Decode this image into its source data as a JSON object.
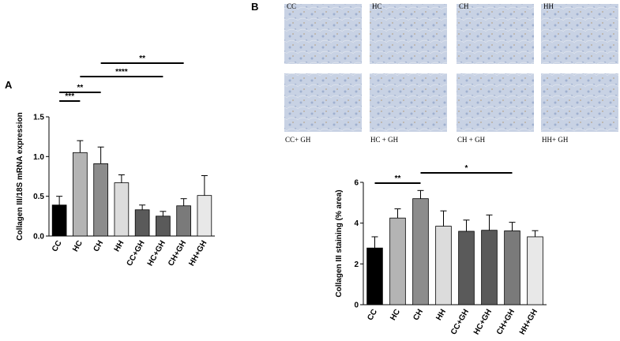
{
  "panel_letters": [
    "A",
    "B"
  ],
  "micrographs": {
    "top_labels": [
      "CC",
      "HC",
      "CH",
      "HH"
    ],
    "bottom_labels": [
      "CC+ GH",
      "HC + GH",
      "CH + GH",
      "HH+ GH"
    ]
  },
  "chart_data": [
    {
      "type": "bar",
      "y_label": "Collagen III/18S mRNA expression",
      "categories": [
        "CC",
        "HC",
        "CH",
        "HH",
        "CC+GH",
        "HC+GH",
        "CH+GH",
        "HH+GH"
      ],
      "values": [
        0.39,
        1.05,
        0.91,
        0.67,
        0.33,
        0.25,
        0.38,
        0.51
      ],
      "errors": [
        0.11,
        0.15,
        0.21,
        0.1,
        0.06,
        0.06,
        0.09,
        0.25
      ],
      "colors": [
        "#000000",
        "#b4b4b4",
        "#8c8c8c",
        "#dcdcdc",
        "#5a5a5a",
        "#5a5a5a",
        "#7a7a7a",
        "#e8e8e8"
      ],
      "ylim": [
        0,
        1.5
      ],
      "yticks": [
        {
          "value": 0,
          "label": "0.0"
        },
        0.5,
        {
          "value": 1,
          "label": "1.0"
        },
        1.5
      ],
      "annotations": [
        {
          "text": "***",
          "from": "CC",
          "to": "HC"
        },
        {
          "text": "**",
          "from": "CC",
          "to": "CH"
        },
        {
          "text": "****",
          "from": "HC",
          "to": "HC+GH"
        },
        {
          "text": "**",
          "from": "CH",
          "to": "CH+GH"
        }
      ]
    },
    {
      "type": "bar",
      "y_label": "Collagen III staining (% area)",
      "categories": [
        "CC",
        "HC",
        "CH",
        "HH",
        "CC+GH",
        "HC+GH",
        "CH+GH",
        "HH+GH"
      ],
      "values": [
        2.78,
        4.25,
        5.2,
        3.85,
        3.6,
        3.65,
        3.62,
        3.33
      ],
      "errors": [
        0.55,
        0.45,
        0.4,
        0.75,
        0.55,
        0.75,
        0.42,
        0.3
      ],
      "colors": [
        "#000000",
        "#b4b4b4",
        "#8c8c8c",
        "#dcdcdc",
        "#5a5a5a",
        "#5a5a5a",
        "#7a7a7a",
        "#e8e8e8"
      ],
      "ylim": [
        0,
        6
      ],
      "yticks": [
        0,
        2,
        4,
        6
      ],
      "annotations": [
        {
          "text": "**",
          "from": "CC",
          "to": "CH"
        },
        {
          "text": "*",
          "from": "CH",
          "to": "CH+GH"
        }
      ]
    }
  ]
}
